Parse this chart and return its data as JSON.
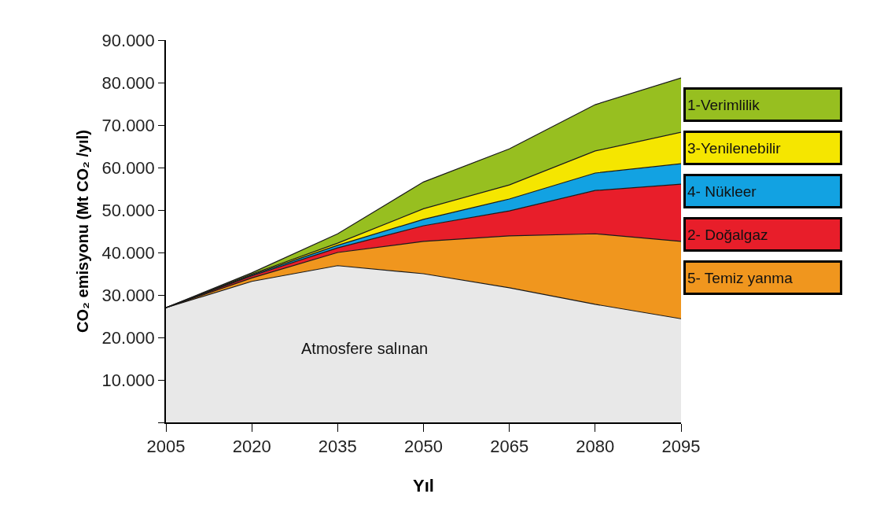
{
  "chart_data": {
    "type": "area",
    "stacked": true,
    "x": [
      2005,
      2020,
      2035,
      2050,
      2065,
      2080,
      2095
    ],
    "xlabel": "Yıl",
    "ylabel": "CO₂ emisyonu (Mt CO₂ /yıl)",
    "xlim": [
      2005,
      2095
    ],
    "xticks": [
      2005,
      2020,
      2035,
      2050,
      2065,
      2080,
      2095
    ],
    "ylim": [
      0,
      90000
    ],
    "yticks": [
      {
        "value": 0,
        "label": null
      },
      {
        "value": 10000,
        "label": "10.000"
      },
      {
        "value": 20000,
        "label": "20.000"
      },
      {
        "value": 30000,
        "label": "30.000"
      },
      {
        "value": 40000,
        "label": "40.000"
      },
      {
        "value": 50000,
        "label": "50.000"
      },
      {
        "value": 60000,
        "label": "60.000"
      },
      {
        "value": 70000,
        "label": "70.000"
      },
      {
        "value": 80000,
        "label": "80.000"
      },
      {
        "value": 90000,
        "label": "90.000"
      }
    ],
    "series": [
      {
        "name": "Atmosfere salınan",
        "color": "#e8e8e8",
        "values": [
          27000,
          33200,
          36900,
          35000,
          31700,
          27800,
          24400
        ]
      },
      {
        "name": "5- Temiz yanma",
        "color": "#f0961e",
        "values": [
          0,
          800,
          3100,
          7600,
          12200,
          16600,
          18200
        ]
      },
      {
        "name": "2- Doğalgaz",
        "color": "#e81e2a",
        "values": [
          0,
          500,
          1100,
          3700,
          5900,
          10200,
          13500
        ]
      },
      {
        "name": "4- Nükleer",
        "color": "#12a2e2",
        "values": [
          0,
          200,
          600,
          1500,
          2800,
          4100,
          4800
        ]
      },
      {
        "name": "3-Yenilenebilir",
        "color": "#f5e600",
        "values": [
          0,
          200,
          500,
          2500,
          3300,
          5200,
          7400
        ]
      },
      {
        "name": "1-Verimlilik",
        "color": "#97bf20",
        "values": [
          0,
          300,
          2200,
          6300,
          8500,
          10900,
          12800
        ]
      }
    ]
  }
}
